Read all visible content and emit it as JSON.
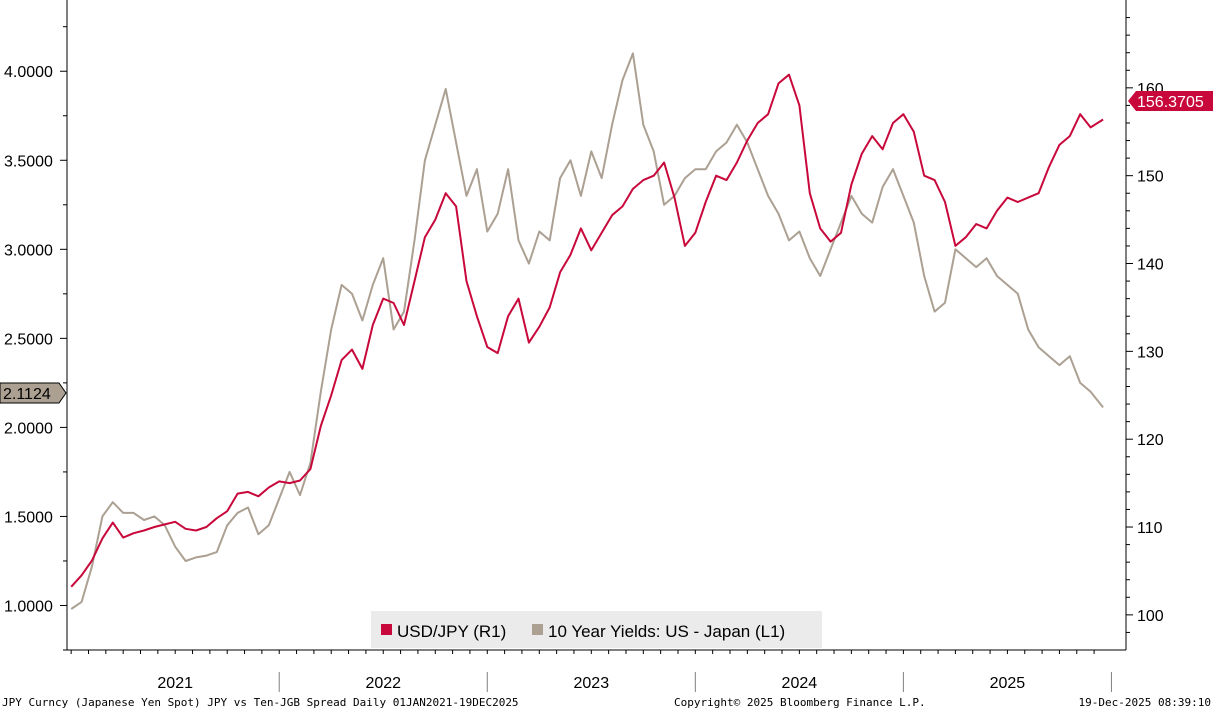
{
  "chart_data": {
    "type": "line",
    "title": "",
    "x_categories": [
      "2021",
      "2022",
      "2023",
      "2024",
      "2025"
    ],
    "left_axis": {
      "ylim": [
        0.75,
        4.4
      ],
      "ticks": [
        "1.0000",
        "1.5000",
        "2.0000",
        "2.5000",
        "3.0000",
        "3.5000",
        "4.0000"
      ]
    },
    "right_axis": {
      "ylim": [
        96,
        170
      ],
      "ticks": [
        "100",
        "110",
        "120",
        "130",
        "140",
        "150",
        "160"
      ]
    },
    "grid": false,
    "legend_position": "bottom-center",
    "series": [
      {
        "name": "USD/JPY (R1)",
        "axis": "right",
        "color": "#c8083a",
        "last_value_label": "156.3705",
        "points": [
          [
            2021.0,
            103.2
          ],
          [
            2021.05,
            104.5
          ],
          [
            2021.1,
            106.2
          ],
          [
            2021.15,
            108.7
          ],
          [
            2021.2,
            110.5
          ],
          [
            2021.25,
            108.8
          ],
          [
            2021.3,
            109.3
          ],
          [
            2021.35,
            109.6
          ],
          [
            2021.4,
            110.0
          ],
          [
            2021.45,
            110.3
          ],
          [
            2021.5,
            110.6
          ],
          [
            2021.55,
            109.8
          ],
          [
            2021.6,
            109.6
          ],
          [
            2021.65,
            110.0
          ],
          [
            2021.7,
            111.0
          ],
          [
            2021.75,
            111.8
          ],
          [
            2021.8,
            113.8
          ],
          [
            2021.85,
            114.0
          ],
          [
            2021.9,
            113.5
          ],
          [
            2021.95,
            114.5
          ],
          [
            2022.0,
            115.2
          ],
          [
            2022.05,
            115.0
          ],
          [
            2022.1,
            115.3
          ],
          [
            2022.15,
            116.6
          ],
          [
            2022.2,
            121.5
          ],
          [
            2022.25,
            125.0
          ],
          [
            2022.3,
            129.0
          ],
          [
            2022.35,
            130.2
          ],
          [
            2022.4,
            128.0
          ],
          [
            2022.45,
            133.0
          ],
          [
            2022.5,
            136.0
          ],
          [
            2022.55,
            135.5
          ],
          [
            2022.6,
            133.0
          ],
          [
            2022.65,
            138.0
          ],
          [
            2022.7,
            143.0
          ],
          [
            2022.75,
            145.0
          ],
          [
            2022.8,
            148.0
          ],
          [
            2022.85,
            146.5
          ],
          [
            2022.9,
            138.0
          ],
          [
            2022.95,
            134.0
          ],
          [
            2023.0,
            130.5
          ],
          [
            2023.05,
            129.8
          ],
          [
            2023.1,
            134.0
          ],
          [
            2023.15,
            136.0
          ],
          [
            2023.2,
            131.0
          ],
          [
            2023.25,
            132.8
          ],
          [
            2023.3,
            135.0
          ],
          [
            2023.35,
            139.0
          ],
          [
            2023.4,
            141.0
          ],
          [
            2023.45,
            144.0
          ],
          [
            2023.5,
            141.5
          ],
          [
            2023.55,
            143.5
          ],
          [
            2023.6,
            145.5
          ],
          [
            2023.65,
            146.5
          ],
          [
            2023.7,
            148.5
          ],
          [
            2023.75,
            149.5
          ],
          [
            2023.8,
            150.0
          ],
          [
            2023.85,
            151.5
          ],
          [
            2023.9,
            147.5
          ],
          [
            2023.95,
            142.0
          ],
          [
            2024.0,
            143.5
          ],
          [
            2024.05,
            147.0
          ],
          [
            2024.1,
            150.0
          ],
          [
            2024.15,
            149.5
          ],
          [
            2024.2,
            151.5
          ],
          [
            2024.25,
            154.0
          ],
          [
            2024.3,
            156.0
          ],
          [
            2024.35,
            157.0
          ],
          [
            2024.4,
            160.5
          ],
          [
            2024.45,
            161.5
          ],
          [
            2024.5,
            158.0
          ],
          [
            2024.55,
            148.0
          ],
          [
            2024.6,
            144.0
          ],
          [
            2024.65,
            142.5
          ],
          [
            2024.7,
            143.5
          ],
          [
            2024.75,
            149.0
          ],
          [
            2024.8,
            152.5
          ],
          [
            2024.85,
            154.5
          ],
          [
            2024.9,
            153.0
          ],
          [
            2024.95,
            156.0
          ],
          [
            2025.0,
            157.0
          ],
          [
            2025.05,
            155.0
          ],
          [
            2025.1,
            150.0
          ],
          [
            2025.15,
            149.5
          ],
          [
            2025.2,
            147.0
          ],
          [
            2025.25,
            142.0
          ],
          [
            2025.3,
            143.0
          ],
          [
            2025.35,
            144.5
          ],
          [
            2025.4,
            144.0
          ],
          [
            2025.45,
            146.0
          ],
          [
            2025.5,
            147.5
          ],
          [
            2025.55,
            147.0
          ],
          [
            2025.6,
            147.5
          ],
          [
            2025.65,
            148.0
          ],
          [
            2025.7,
            151.0
          ],
          [
            2025.75,
            153.5
          ],
          [
            2025.8,
            154.5
          ],
          [
            2025.85,
            157.0
          ],
          [
            2025.9,
            155.5
          ],
          [
            2025.96,
            156.4
          ]
        ]
      },
      {
        "name": "10 Year Yields: US - Japan (L1)",
        "axis": "left",
        "color": "#aca093",
        "last_value_label": "2.1124",
        "points": [
          [
            2021.0,
            0.98
          ],
          [
            2021.05,
            1.02
          ],
          [
            2021.1,
            1.22
          ],
          [
            2021.15,
            1.5
          ],
          [
            2021.2,
            1.58
          ],
          [
            2021.25,
            1.52
          ],
          [
            2021.3,
            1.52
          ],
          [
            2021.35,
            1.48
          ],
          [
            2021.4,
            1.5
          ],
          [
            2021.45,
            1.45
          ],
          [
            2021.5,
            1.33
          ],
          [
            2021.55,
            1.25
          ],
          [
            2021.6,
            1.27
          ],
          [
            2021.65,
            1.28
          ],
          [
            2021.7,
            1.3
          ],
          [
            2021.75,
            1.45
          ],
          [
            2021.8,
            1.52
          ],
          [
            2021.85,
            1.55
          ],
          [
            2021.9,
            1.4
          ],
          [
            2021.95,
            1.45
          ],
          [
            2022.0,
            1.6
          ],
          [
            2022.05,
            1.75
          ],
          [
            2022.1,
            1.62
          ],
          [
            2022.15,
            1.8
          ],
          [
            2022.2,
            2.2
          ],
          [
            2022.25,
            2.55
          ],
          [
            2022.3,
            2.8
          ],
          [
            2022.35,
            2.75
          ],
          [
            2022.4,
            2.6
          ],
          [
            2022.45,
            2.8
          ],
          [
            2022.5,
            2.95
          ],
          [
            2022.55,
            2.55
          ],
          [
            2022.6,
            2.65
          ],
          [
            2022.65,
            3.05
          ],
          [
            2022.7,
            3.5
          ],
          [
            2022.75,
            3.7
          ],
          [
            2022.8,
            3.9
          ],
          [
            2022.85,
            3.6
          ],
          [
            2022.9,
            3.3
          ],
          [
            2022.95,
            3.45
          ],
          [
            2023.0,
            3.1
          ],
          [
            2023.05,
            3.2
          ],
          [
            2023.1,
            3.45
          ],
          [
            2023.15,
            3.05
          ],
          [
            2023.2,
            2.92
          ],
          [
            2023.25,
            3.1
          ],
          [
            2023.3,
            3.05
          ],
          [
            2023.35,
            3.4
          ],
          [
            2023.4,
            3.5
          ],
          [
            2023.45,
            3.3
          ],
          [
            2023.5,
            3.55
          ],
          [
            2023.55,
            3.4
          ],
          [
            2023.6,
            3.7
          ],
          [
            2023.65,
            3.95
          ],
          [
            2023.7,
            4.1
          ],
          [
            2023.75,
            3.7
          ],
          [
            2023.8,
            3.55
          ],
          [
            2023.85,
            3.25
          ],
          [
            2023.9,
            3.3
          ],
          [
            2023.95,
            3.4
          ],
          [
            2024.0,
            3.45
          ],
          [
            2024.05,
            3.45
          ],
          [
            2024.1,
            3.55
          ],
          [
            2024.15,
            3.6
          ],
          [
            2024.2,
            3.7
          ],
          [
            2024.25,
            3.6
          ],
          [
            2024.3,
            3.45
          ],
          [
            2024.35,
            3.3
          ],
          [
            2024.4,
            3.2
          ],
          [
            2024.45,
            3.05
          ],
          [
            2024.5,
            3.1
          ],
          [
            2024.55,
            2.95
          ],
          [
            2024.6,
            2.85
          ],
          [
            2024.65,
            3.0
          ],
          [
            2024.7,
            3.15
          ],
          [
            2024.75,
            3.3
          ],
          [
            2024.8,
            3.2
          ],
          [
            2024.85,
            3.15
          ],
          [
            2024.9,
            3.35
          ],
          [
            2024.95,
            3.45
          ],
          [
            2025.0,
            3.3
          ],
          [
            2025.05,
            3.15
          ],
          [
            2025.1,
            2.85
          ],
          [
            2025.15,
            2.65
          ],
          [
            2025.2,
            2.7
          ],
          [
            2025.25,
            3.0
          ],
          [
            2025.3,
            2.95
          ],
          [
            2025.35,
            2.9
          ],
          [
            2025.4,
            2.95
          ],
          [
            2025.45,
            2.85
          ],
          [
            2025.5,
            2.8
          ],
          [
            2025.55,
            2.75
          ],
          [
            2025.6,
            2.55
          ],
          [
            2025.65,
            2.45
          ],
          [
            2025.7,
            2.4
          ],
          [
            2025.75,
            2.35
          ],
          [
            2025.8,
            2.4
          ],
          [
            2025.85,
            2.25
          ],
          [
            2025.9,
            2.2
          ],
          [
            2025.96,
            2.1124
          ]
        ]
      }
    ],
    "footer": {
      "left": "JPY Curncy (Japanese Yen Spot) JPY vs Ten-JGB Spread Daily 01JAN2021-19DEC2025",
      "center": "Copyright© 2025 Bloomberg Finance L.P.",
      "right": "19-Dec-2025 08:39:10"
    }
  }
}
